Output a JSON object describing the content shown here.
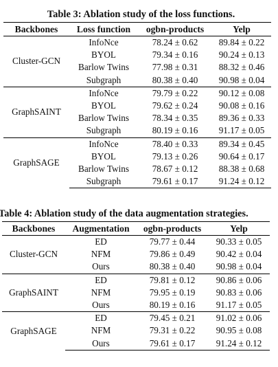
{
  "table3": {
    "caption": "Table 3: Ablation study of the loss functions.",
    "headers": [
      "Backbones",
      "Loss function",
      "ogbn-products",
      "Yelp"
    ],
    "groups": [
      {
        "backbone": "Cluster-GCN",
        "rows": [
          {
            "label": "InfoNce",
            "products": "78.24 ± 0.62",
            "yelp": "89.84 ± 0.22"
          },
          {
            "label": "BYOL",
            "products": "79.34 ± 0.16",
            "yelp": "90.24 ± 0.13"
          },
          {
            "label": "Barlow Twins",
            "products": "77.98 ± 0.31",
            "yelp": "88.32 ± 0.46"
          },
          {
            "label": "Subgraph",
            "products": "80.38 ± 0.40",
            "yelp": "90.98 ± 0.04"
          }
        ]
      },
      {
        "backbone": "GraphSAINT",
        "rows": [
          {
            "label": "InfoNce",
            "products": "79.79 ± 0.22",
            "yelp": "90.12 ± 0.08"
          },
          {
            "label": "BYOL",
            "products": "79.62 ± 0.24",
            "yelp": "90.08 ± 0.16"
          },
          {
            "label": "Barlow Twins",
            "products": "78.34 ± 0.35",
            "yelp": "89.36 ± 0.33"
          },
          {
            "label": "Subgraph",
            "products": "80.19 ± 0.16",
            "yelp": "91.17 ± 0.05"
          }
        ]
      },
      {
        "backbone": "GraphSAGE",
        "rows": [
          {
            "label": "InfoNce",
            "products": "78.40 ± 0.33",
            "yelp": "89.34 ± 0.45"
          },
          {
            "label": "BYOL",
            "products": "79.13 ± 0.26",
            "yelp": "90.64 ± 0.17"
          },
          {
            "label": "Barlow Twins",
            "products": "78.67 ± 0.12",
            "yelp": "88.38 ± 0.68"
          },
          {
            "label": "Subgraph",
            "products": "79.61 ± 0.17",
            "yelp": "91.24 ± 0.12"
          }
        ]
      }
    ]
  },
  "table4": {
    "caption": "Table 4: Ablation study of the data augmentation strategies.",
    "headers": [
      "Backbones",
      "Augmentation",
      "ogbn-products",
      "Yelp"
    ],
    "groups": [
      {
        "backbone": "Cluster-GCN",
        "rows": [
          {
            "label": "ED",
            "products": "79.77 ± 0.44",
            "yelp": "90.33 ± 0.05"
          },
          {
            "label": "NFM",
            "products": "79.86 ± 0.49",
            "yelp": "90.42 ± 0.04"
          },
          {
            "label": "Ours",
            "products": "80.38 ± 0.40",
            "yelp": "90.98 ± 0.04"
          }
        ]
      },
      {
        "backbone": "GraphSAINT",
        "rows": [
          {
            "label": "ED",
            "products": "79.81 ± 0.12",
            "yelp": "90.86 ± 0.06"
          },
          {
            "label": "NFM",
            "products": "79.95 ± 0.19",
            "yelp": "90.83 ± 0.06"
          },
          {
            "label": "Ours",
            "products": "80.19 ± 0.16",
            "yelp": "91.17 ± 0.05"
          }
        ]
      },
      {
        "backbone": "GraphSAGE",
        "rows": [
          {
            "label": "ED",
            "products": "79.45 ± 0.21",
            "yelp": "91.02 ± 0.06"
          },
          {
            "label": "NFM",
            "products": "79.31 ± 0.22",
            "yelp": "90.95 ± 0.08"
          },
          {
            "label": "Ours",
            "products": "79.61 ± 0.17",
            "yelp": "91.24 ± 0.12"
          }
        ]
      }
    ]
  }
}
